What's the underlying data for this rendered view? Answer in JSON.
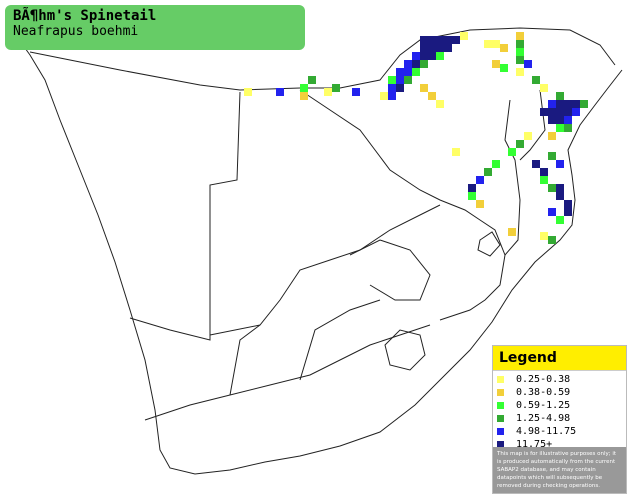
{
  "header": {
    "title": "BÃ¶hm's Spinetail",
    "subtitle": "Neafrapus boehmi"
  },
  "legend": {
    "title": "Legend",
    "items": [
      {
        "label": "0.25-0.38",
        "color": "#ffff66"
      },
      {
        "label": "0.38-0.59",
        "color": "#f2cf3a"
      },
      {
        "label": "0.59-1.25",
        "color": "#33ff33"
      },
      {
        "label": "1.25-4.98",
        "color": "#33aa33"
      },
      {
        "label": "4.98-11.75",
        "color": "#2222ee"
      },
      {
        "label": "11.75+",
        "color": "#1a1a80"
      }
    ],
    "note": "This map is for illustrative purposes only; it is produced automatically from the current SABAP2 database, and may contain datapoints which will subsequently be removed during checking operations."
  }
}
